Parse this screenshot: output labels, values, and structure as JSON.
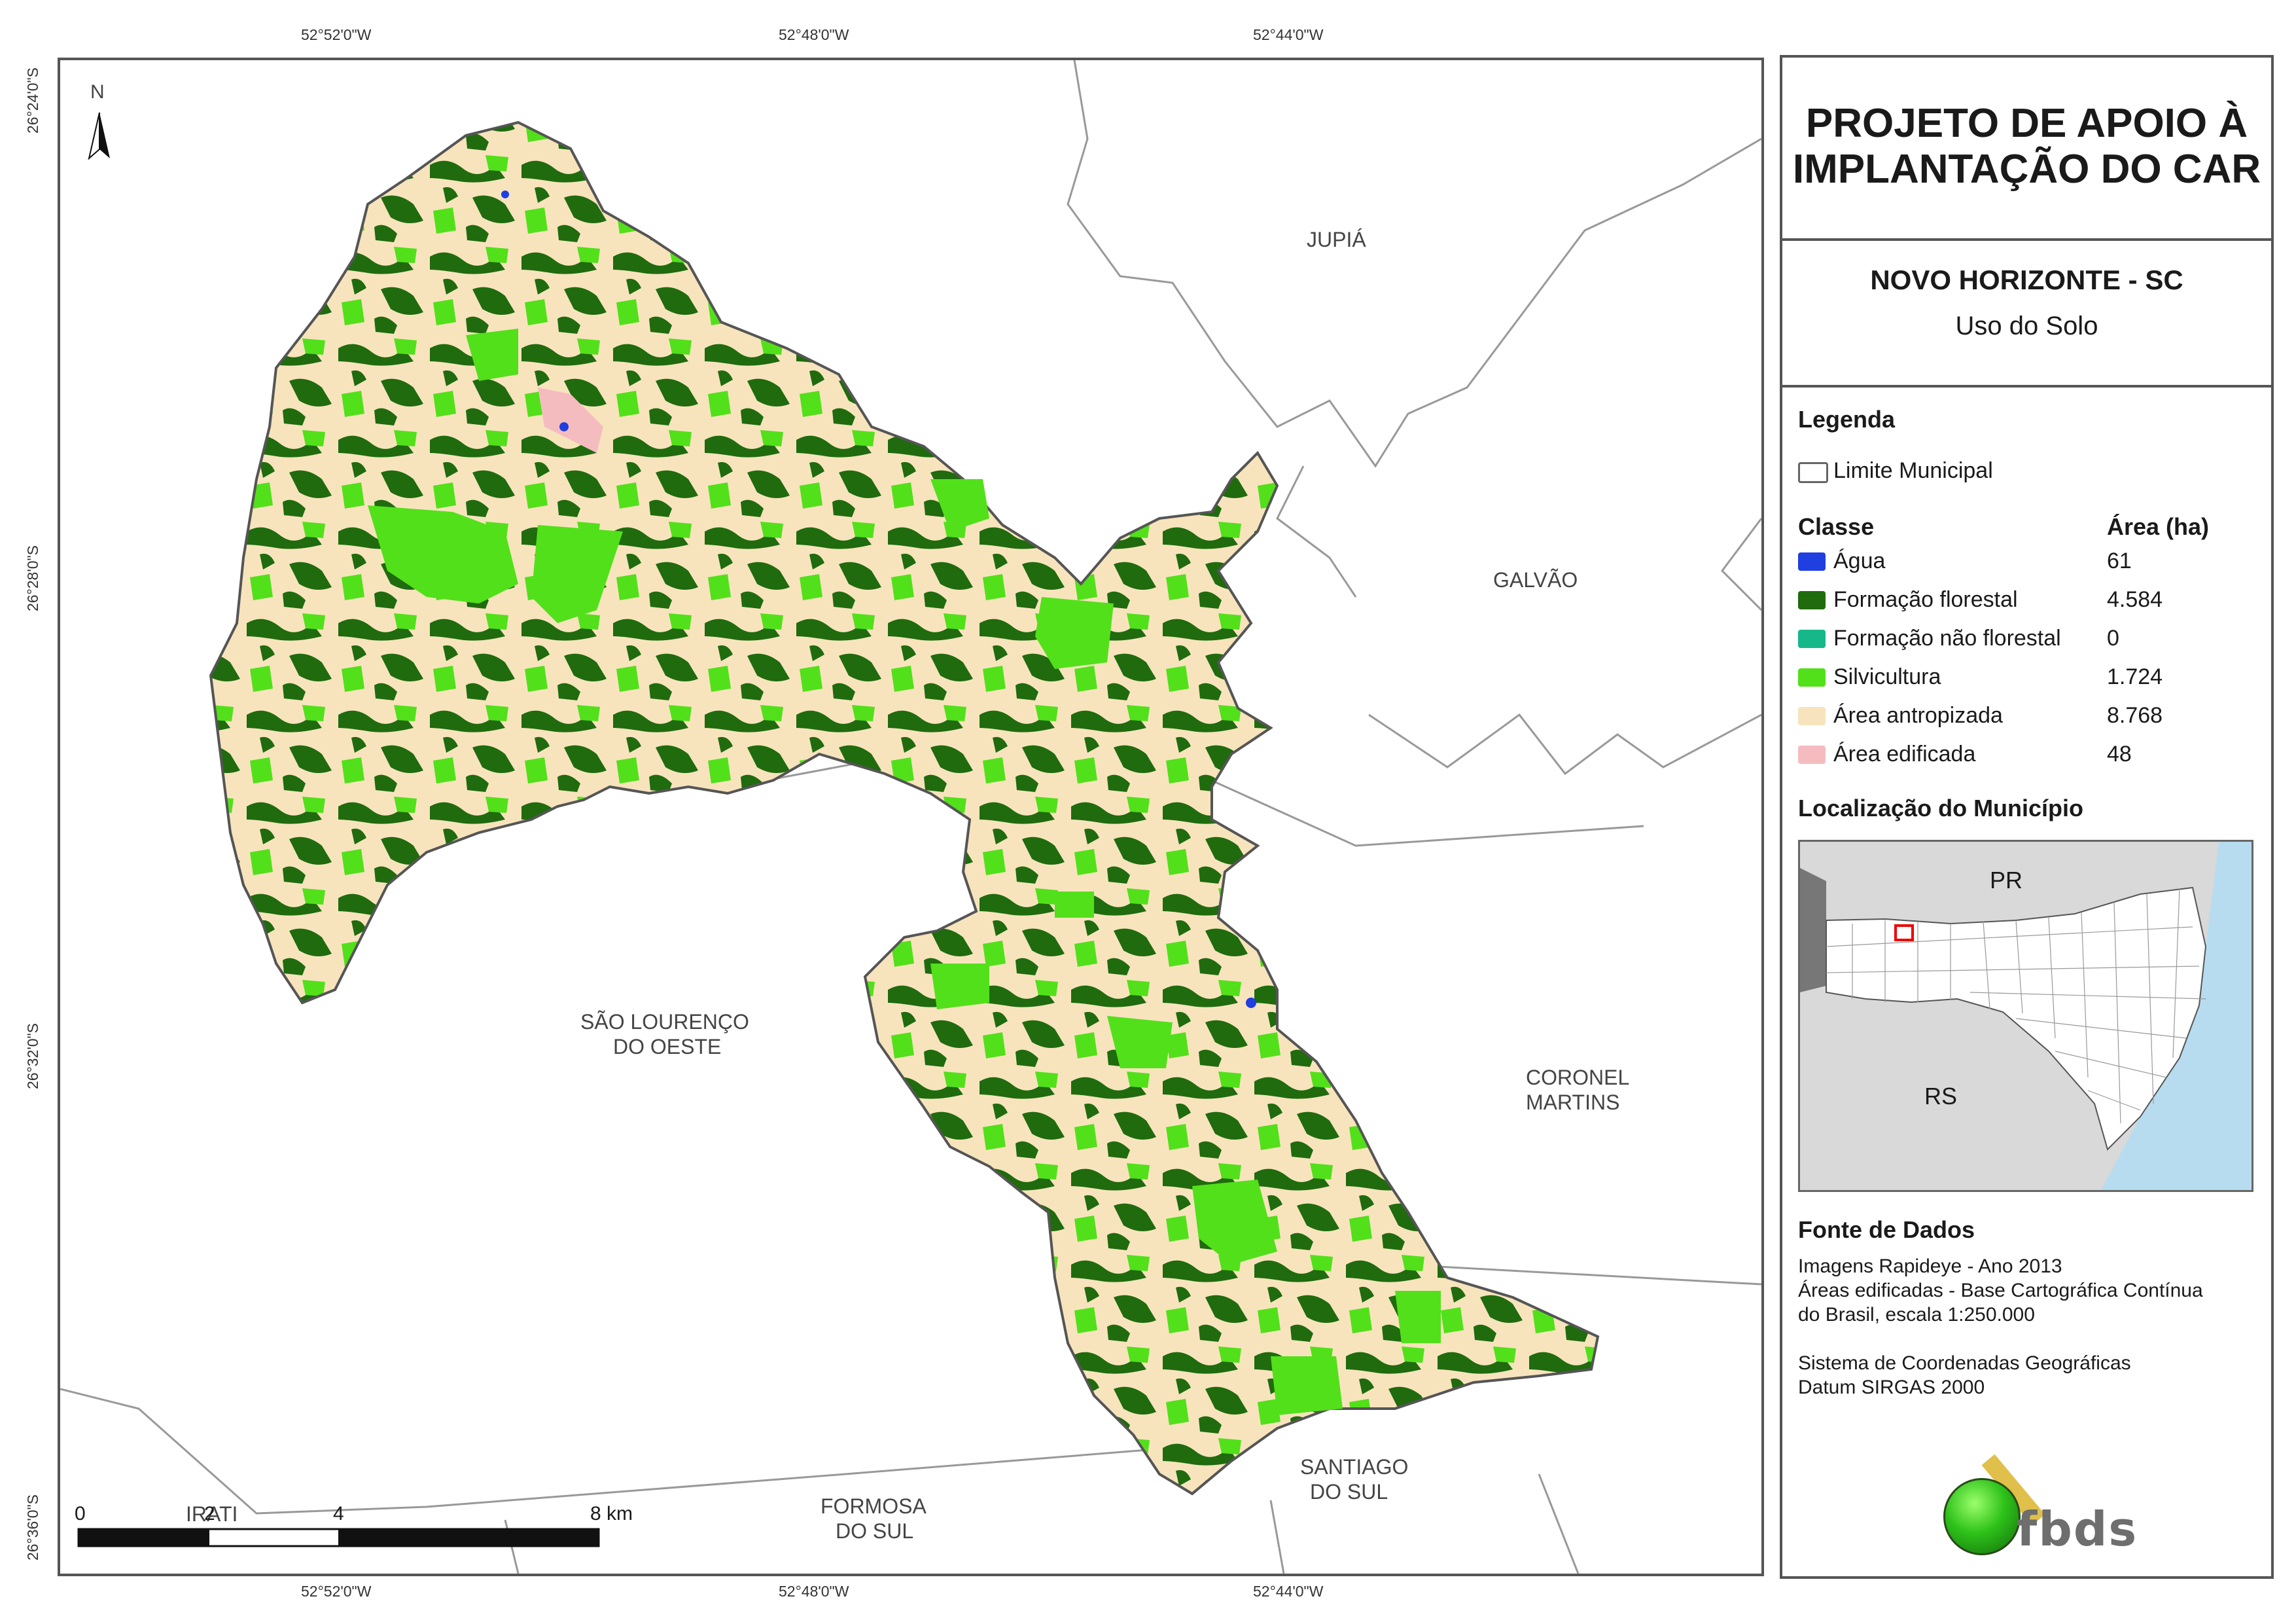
{
  "coordinates": {
    "top": [
      "52°52'0\"W",
      "52°48'0\"W",
      "52°44'0\"W"
    ],
    "bottom": [
      "52°52'0\"W",
      "52°48'0\"W",
      "52°44'0\"W"
    ],
    "left": [
      "26°24'0\"S",
      "26°28'0\"S",
      "26°32'0\"S",
      "26°36'0\"S"
    ]
  },
  "map": {
    "north_label": "N",
    "neighbors": {
      "jupia": "JUPIÁ",
      "galvao": "GALVÃO",
      "sao_lourenco_1": "SÃO LOURENÇO",
      "sao_lourenco_2": "DO OESTE",
      "coronel_1": "CORONEL",
      "coronel_2": "MARTINS",
      "santiago_1": "SANTIAGO",
      "santiago_2": "DO SUL",
      "formosa_1": "FORMOSA",
      "formosa_2": "DO SUL",
      "irati": "IRATI"
    },
    "scale": {
      "labels": [
        "0",
        "2",
        "4",
        "8 km"
      ]
    }
  },
  "panel": {
    "project_title_1": "PROJETO DE APOIO À",
    "project_title_2": "IMPLANTAÇÃO DO CAR",
    "municipality": "NOVO HORIZONTE - SC",
    "subtitle": "Uso do Solo",
    "legend_heading": "Legenda",
    "boundary_label": "Limite Municipal",
    "class_heading": "Classe",
    "area_heading": "Área (ha)",
    "classes": [
      {
        "label": "Água",
        "area": "61",
        "color": "#1f3fe0"
      },
      {
        "label": "Formação florestal",
        "area": "4.584",
        "color": "#1f6b0e"
      },
      {
        "label": "Formação não florestal",
        "area": "0",
        "color": "#16b88a"
      },
      {
        "label": "Silvicultura",
        "area": "1.724",
        "color": "#52e01a"
      },
      {
        "label": "Área antropizada",
        "area": "8.768",
        "color": "#f7e4bd"
      },
      {
        "label": "Área edificada",
        "area": "48",
        "color": "#f5bcc0"
      }
    ],
    "location_heading": "Localização do Município",
    "inset": {
      "pr": "PR",
      "rs": "RS"
    },
    "source_heading": "Fonte de Dados",
    "source_lines": [
      "Imagens Rapideye - Ano 2013",
      "Áreas edificadas - Base Cartográfica Contínua",
      "do Brasil, escala 1:250.000",
      "",
      "Sistema de Coordenadas Geográficas",
      "Datum SIRGAS 2000"
    ],
    "logo_text": "fbds"
  }
}
